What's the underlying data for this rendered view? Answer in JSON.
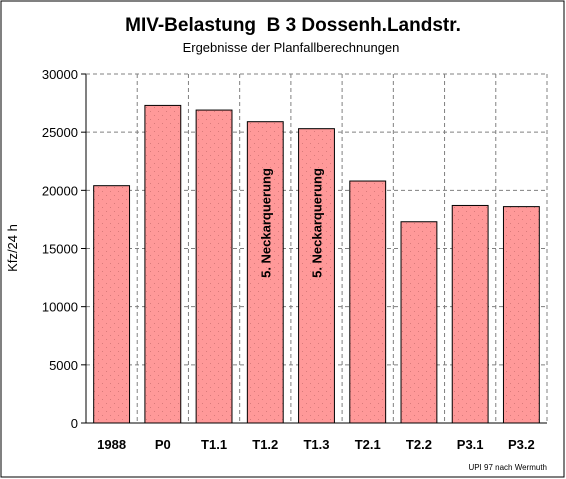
{
  "chart_data": {
    "type": "bar",
    "title": "MIV-Belastung  B 3 Dossenh.Landstr.",
    "subtitle": "Ergebnisse der Planfallberechnungen",
    "ylabel": "Kfz/24 h",
    "xlabel": "",
    "categories": [
      "1988",
      "P0",
      "T1.1",
      "T1.2",
      "T1.3",
      "T2.1",
      "T2.2",
      "P3.1",
      "P3.2"
    ],
    "values": [
      20400,
      27300,
      26900,
      25900,
      25300,
      20800,
      17300,
      18700,
      18600
    ],
    "ylim": [
      0,
      30000
    ],
    "yticks": [
      0,
      5000,
      10000,
      15000,
      20000,
      25000,
      30000
    ],
    "grid": true,
    "legend": "none",
    "bar_color": "#ff9999",
    "annotations": [
      {
        "category": "T1.2",
        "text": "5. Neckarquerung"
      },
      {
        "category": "T1.3",
        "text": "5. Neckarquerung"
      }
    ],
    "credit": "UPI 97 nach Wermuth"
  }
}
